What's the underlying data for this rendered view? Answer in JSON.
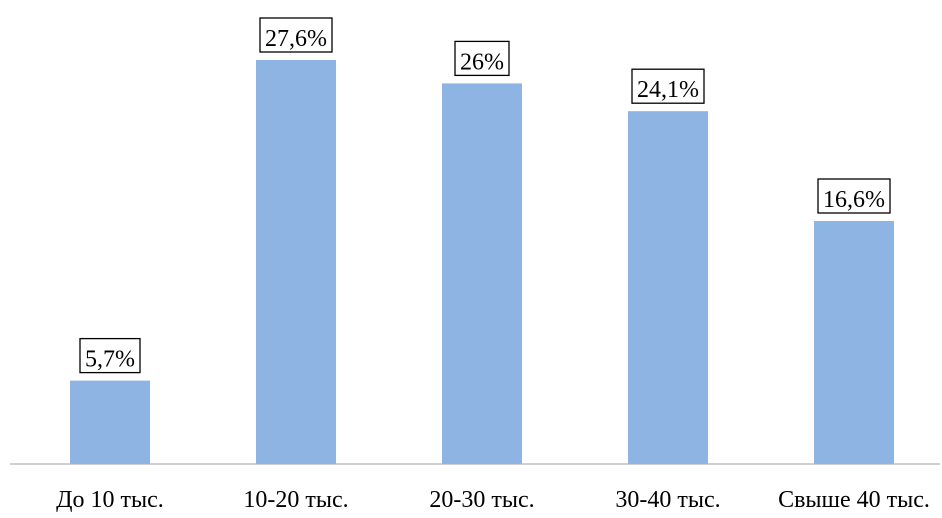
{
  "chart_data": {
    "type": "bar",
    "categories": [
      "До 10 тыс.",
      "10-20 тыс.",
      "20-30 тыс.",
      "30-40 тыс.",
      "Свыше 40 тыс."
    ],
    "values": [
      5.7,
      27.6,
      26,
      24.1,
      16.6
    ],
    "data_labels": [
      "5,7%",
      "27,6%",
      "26%",
      "24,1%",
      "16,6%"
    ],
    "title": "",
    "xlabel": "",
    "ylabel": "",
    "ylim": [
      0,
      30
    ],
    "grid": false,
    "legend": "none",
    "colors": {
      "bar": "#8EB4E3",
      "axis": "#BFBFBF"
    }
  }
}
